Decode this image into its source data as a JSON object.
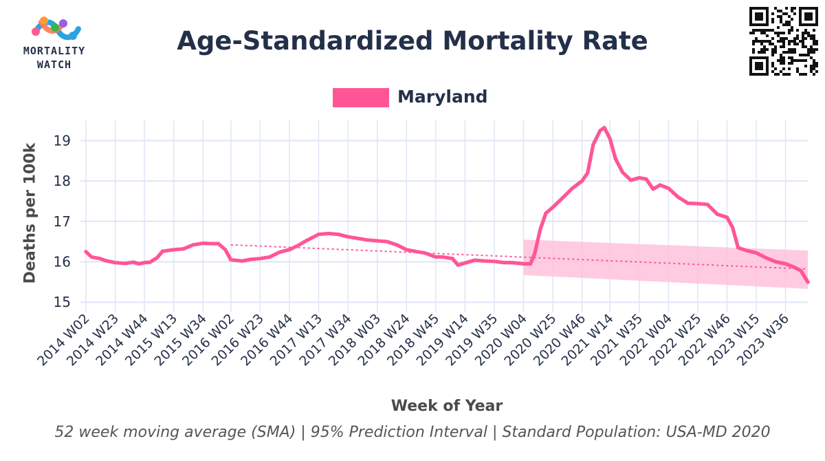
{
  "branding": {
    "logo_line1": "MORTALITY",
    "logo_line2": "WATCH"
  },
  "colors": {
    "series": "#ff5596",
    "band": "#ffc2da",
    "trend": "#ff5596",
    "grid": "#dfe5f5",
    "text": "#243049"
  },
  "chart_data": {
    "type": "line",
    "title": "Age-Standardized Mortality Rate",
    "xlabel": "Week of Year",
    "ylabel": "Deaths per 100k",
    "footnote": "52 week moving average (SMA) | 95% Prediction Interval | Standard Population: USA-MD 2020",
    "ylim": [
      14.85,
      19.5
    ],
    "yticks": [
      15,
      16,
      17,
      18,
      19
    ],
    "grid": true,
    "legend_position": "top-center",
    "x_tick_labels": [
      "2014 W02",
      "2014 W23",
      "2014 W44",
      "2015 W13",
      "2015 W34",
      "2016 W02",
      "2016 W23",
      "2016 W44",
      "2017 W13",
      "2017 W34",
      "2018 W03",
      "2018 W24",
      "2018 W45",
      "2019 W14",
      "2019 W35",
      "2020 W04",
      "2020 W25",
      "2020 W46",
      "2021 W14",
      "2021 W35",
      "2022 W04",
      "2022 W25",
      "2022 W46",
      "2023 W15",
      "2023 W36"
    ],
    "series": [
      {
        "name": "Maryland",
        "points": [
          [
            "2014 W02",
            16.25
          ],
          [
            "2014 W06",
            16.12
          ],
          [
            "2014 W12",
            16.08
          ],
          [
            "2014 W16",
            16.03
          ],
          [
            "2014 W23",
            15.98
          ],
          [
            "2014 W30",
            15.96
          ],
          [
            "2014 W36",
            15.99
          ],
          [
            "2014 W40",
            15.95
          ],
          [
            "2014 W44",
            15.98
          ],
          [
            "2014 W48",
            15.99
          ],
          [
            "2015 W01",
            16.1
          ],
          [
            "2015 W05",
            16.26
          ],
          [
            "2015 W13",
            16.3
          ],
          [
            "2015 W20",
            16.32
          ],
          [
            "2015 W27",
            16.42
          ],
          [
            "2015 W34",
            16.46
          ],
          [
            "2015 W40",
            16.45
          ],
          [
            "2015 W45",
            16.45
          ],
          [
            "2015 W50",
            16.3
          ],
          [
            "2016 W02",
            16.05
          ],
          [
            "2016 W10",
            16.02
          ],
          [
            "2016 W16",
            16.06
          ],
          [
            "2016 W23",
            16.08
          ],
          [
            "2016 W30",
            16.12
          ],
          [
            "2016 W37",
            16.24
          ],
          [
            "2016 W44",
            16.3
          ],
          [
            "2016 W50",
            16.4
          ],
          [
            "2017 W04",
            16.52
          ],
          [
            "2017 W13",
            16.68
          ],
          [
            "2017 W20",
            16.7
          ],
          [
            "2017 W27",
            16.68
          ],
          [
            "2017 W34",
            16.62
          ],
          [
            "2017 W41",
            16.58
          ],
          [
            "2017 W48",
            16.54
          ],
          [
            "2018 W03",
            16.52
          ],
          [
            "2018 W10",
            16.5
          ],
          [
            "2018 W17",
            16.42
          ],
          [
            "2018 W24",
            16.3
          ],
          [
            "2018 W30",
            16.26
          ],
          [
            "2018 W37",
            16.22
          ],
          [
            "2018 W45",
            16.12
          ],
          [
            "2018 W50",
            16.12
          ],
          [
            "2019 W05",
            16.08
          ],
          [
            "2019 W09",
            15.92
          ],
          [
            "2019 W14",
            15.97
          ],
          [
            "2019 W21",
            16.04
          ],
          [
            "2019 W28",
            16.02
          ],
          [
            "2019 W35",
            16.01
          ],
          [
            "2019 W42",
            15.98
          ],
          [
            "2019 W48",
            15.98
          ],
          [
            "2020 W04",
            15.95
          ],
          [
            "2020 W09",
            15.95
          ],
          [
            "2020 W12",
            16.2
          ],
          [
            "2020 W16",
            16.8
          ],
          [
            "2020 W20",
            17.2
          ],
          [
            "2020 W25",
            17.35
          ],
          [
            "2020 W32",
            17.58
          ],
          [
            "2020 W39",
            17.82
          ],
          [
            "2020 W46",
            18.0
          ],
          [
            "2020 W50",
            18.2
          ],
          [
            "2021 W02",
            18.9
          ],
          [
            "2021 W07",
            19.25
          ],
          [
            "2021 W10",
            19.32
          ],
          [
            "2021 W14",
            19.05
          ],
          [
            "2021 W18",
            18.55
          ],
          [
            "2021 W23",
            18.22
          ],
          [
            "2021 W29",
            18.02
          ],
          [
            "2021 W35",
            18.08
          ],
          [
            "2021 W40",
            18.05
          ],
          [
            "2021 W45",
            17.8
          ],
          [
            "2021 W50",
            17.9
          ],
          [
            "2022 W04",
            17.82
          ],
          [
            "2022 W11",
            17.6
          ],
          [
            "2022 W18",
            17.45
          ],
          [
            "2022 W25",
            17.44
          ],
          [
            "2022 W32",
            17.42
          ],
          [
            "2022 W39",
            17.18
          ],
          [
            "2022 W46",
            17.1
          ],
          [
            "2022 W50",
            16.85
          ],
          [
            "2023 W02",
            16.35
          ],
          [
            "2023 W08",
            16.28
          ],
          [
            "2023 W15",
            16.22
          ],
          [
            "2023 W22",
            16.1
          ],
          [
            "2023 W29",
            16.0
          ],
          [
            "2023 W36",
            15.95
          ],
          [
            "2023 W42",
            15.87
          ],
          [
            "2023 W47",
            15.78
          ],
          [
            "2023 W52",
            15.5
          ]
        ]
      },
      {
        "kind": "trend",
        "points": [
          [
            "2016 W02",
            16.42
          ],
          [
            "2023 W52",
            15.82
          ]
        ]
      },
      {
        "kind": "prediction_interval",
        "start": "2020 W04",
        "end": "2023 W52",
        "lower": [
          15.67,
          15.33
        ],
        "upper": [
          16.55,
          16.28
        ]
      }
    ]
  }
}
